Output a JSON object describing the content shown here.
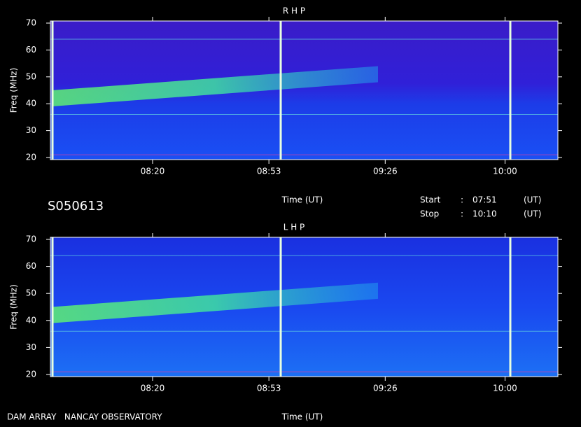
{
  "chart_data": [
    {
      "type": "spectrogram",
      "title": "R H P",
      "xlabel": "Time (UT)",
      "ylabel": "Freq (MHz)",
      "ylim": [
        20,
        70
      ],
      "yticks": [
        20,
        30,
        40,
        50,
        60,
        70
      ],
      "xlim": [
        471,
        615
      ],
      "xticks": [
        {
          "value": 500,
          "label": "08:20"
        },
        {
          "value": 533,
          "label": "08:53"
        },
        {
          "value": 566,
          "label": "09:26"
        },
        {
          "value": 600,
          "label": "10:00"
        }
      ]
    },
    {
      "type": "spectrogram",
      "title": "L H P",
      "xlabel": "Time (UT)",
      "ylabel": "Freq (MHz)",
      "ylim": [
        20,
        70
      ],
      "yticks": [
        20,
        30,
        40,
        50,
        60,
        70
      ],
      "xlim": [
        471,
        615
      ],
      "xticks": [
        {
          "value": 500,
          "label": "08:20"
        },
        {
          "value": 533,
          "label": "08:53"
        },
        {
          "value": 566,
          "label": "09:26"
        },
        {
          "value": 600,
          "label": "10:00"
        }
      ]
    }
  ],
  "info": {
    "id": "S050613",
    "start_label": "Start",
    "stop_label": "Stop",
    "separator": ":",
    "start": "07:51",
    "stop": "10:10",
    "unit": "(UT)",
    "footer": "DAM ARRAY   NANCAY OBSERVATORY"
  }
}
